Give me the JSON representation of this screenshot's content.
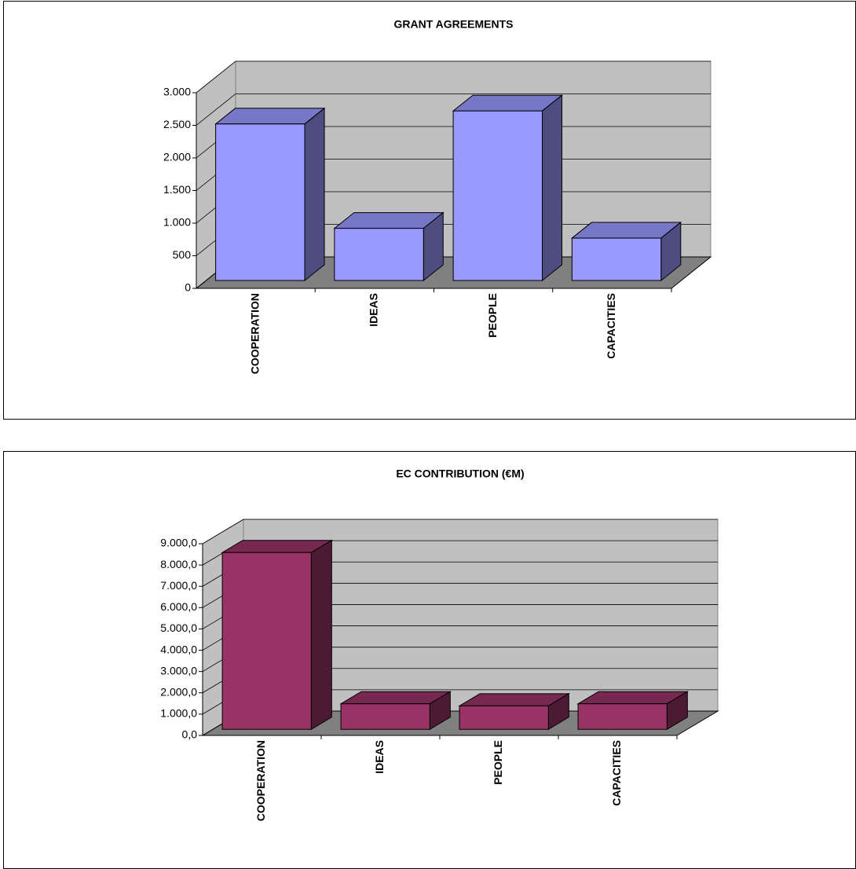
{
  "chart_data": [
    {
      "type": "bar3d",
      "title": "GRANT AGREEMENTS",
      "categories": [
        "COOPERATION",
        "IDEAS",
        "PEOPLE",
        "CAPACITIES"
      ],
      "values": [
        2400,
        800,
        2600,
        650
      ],
      "color": "#9999ff",
      "ylim": [
        0,
        3000
      ],
      "yticks": [
        0,
        {
          "value": 500,
          "label": "500"
        },
        {
          "value": 1000,
          "label": "1.000"
        },
        {
          "value": 1500,
          "label": "1.500"
        },
        {
          "value": 2000,
          "label": "2.000"
        },
        {
          "value": 2500,
          "label": "2.500"
        },
        {
          "value": 3000,
          "label": "3.000"
        }
      ],
      "grid": true
    },
    {
      "type": "bar3d",
      "title": "EC CONTRIBUTION (€M)",
      "categories": [
        "COOPERATION",
        "IDEAS",
        "PEOPLE",
        "CAPACITIES"
      ],
      "values": [
        8300,
        1200,
        1100,
        1200
      ],
      "color": "#993366",
      "ylim": [
        0,
        9000
      ],
      "yticks": [
        {
          "value": 0,
          "label": "0,0"
        },
        {
          "value": 1000,
          "label": "1.000,0"
        },
        {
          "value": 2000,
          "label": "2.000,0"
        },
        {
          "value": 3000,
          "label": "3.000,0"
        },
        {
          "value": 4000,
          "label": "4.000,0"
        },
        {
          "value": 5000,
          "label": "5.000,0"
        },
        {
          "value": 6000,
          "label": "6.000,0"
        },
        {
          "value": 7000,
          "label": "7.000,0"
        },
        {
          "value": 8000,
          "label": "8.000,0"
        },
        {
          "value": 9000,
          "label": "9.000,0"
        }
      ],
      "grid": true
    }
  ]
}
